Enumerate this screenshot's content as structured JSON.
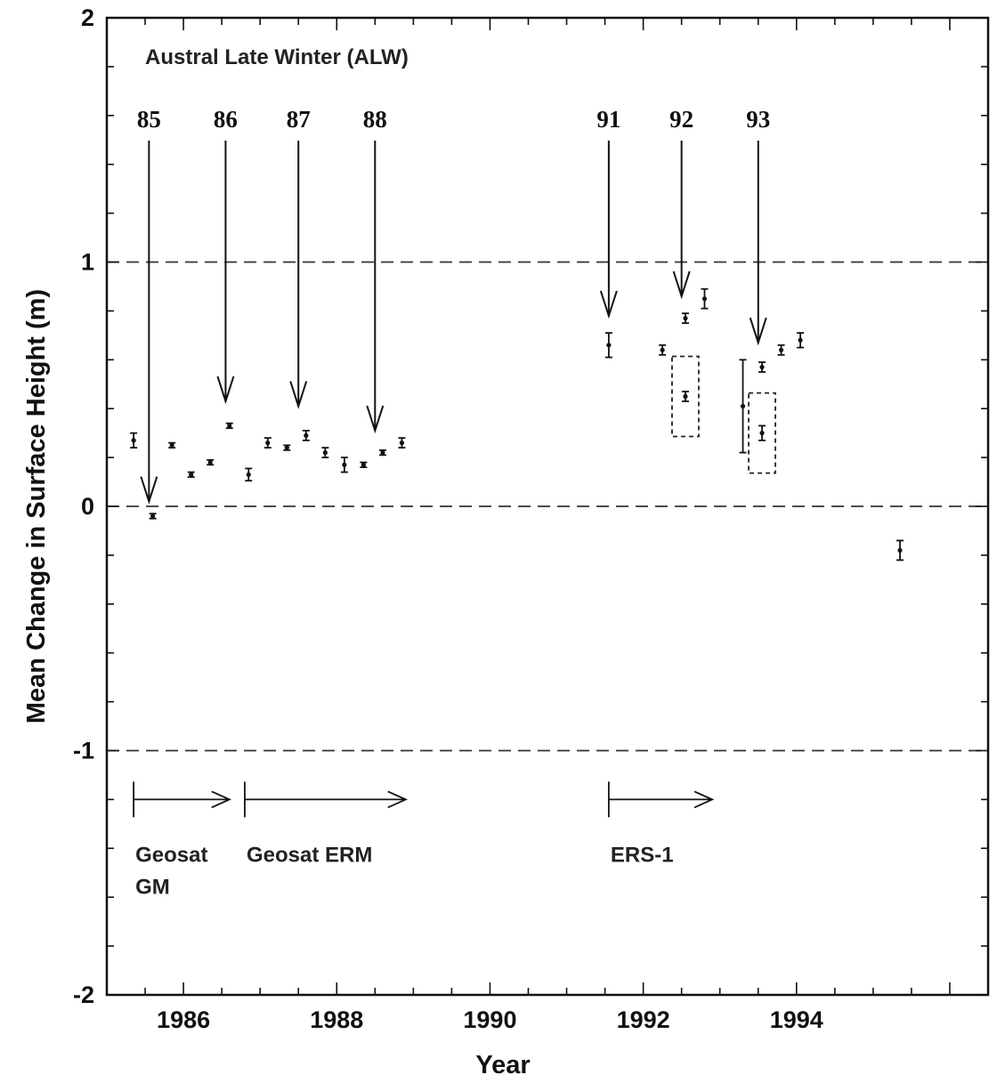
{
  "chart_data": {
    "type": "scatter",
    "title": "",
    "xlabel": "Year",
    "ylabel": "Mean Change in Surface Height (m)",
    "xlim": [
      1985.0,
      1996.5
    ],
    "ylim": [
      -2,
      2
    ],
    "x_ticks": [
      1986,
      1988,
      1990,
      1992,
      1994
    ],
    "y_ticks": [
      2,
      1,
      0,
      -1,
      -2
    ],
    "grid": false,
    "reference_lines": [
      1,
      0,
      -1
    ],
    "annotations": [
      {
        "text": "Austral Late Winter (ALW)",
        "x": 1985.5,
        "y": 1.81
      }
    ],
    "season_markers": [
      {
        "label": "85",
        "x": 1985.55,
        "arrow_to_y": 0.02
      },
      {
        "label": "86",
        "x": 1986.55,
        "arrow_to_y": 0.43
      },
      {
        "label": "87",
        "x": 1987.5,
        "arrow_to_y": 0.41
      },
      {
        "label": "88",
        "x": 1988.5,
        "arrow_to_y": 0.31
      },
      {
        "label": "91",
        "x": 1991.55,
        "arrow_to_y": 0.78
      },
      {
        "label": "92",
        "x": 1992.5,
        "arrow_to_y": 0.86
      },
      {
        "label": "93",
        "x": 1993.5,
        "arrow_to_y": 0.67
      }
    ],
    "missions": [
      {
        "name": "Geosat GM",
        "lines": [
          "Geosat",
          "GM"
        ],
        "x_start": 1985.35,
        "x_end": 1986.6,
        "y": -1.2
      },
      {
        "name": "Geosat ERM",
        "lines": [
          "Geosat ERM"
        ],
        "x_start": 1986.8,
        "x_end": 1988.9,
        "y": -1.2
      },
      {
        "name": "ERS-1",
        "lines": [
          "ERS-1"
        ],
        "x_start": 1991.55,
        "x_end": 1992.9,
        "y": -1.2
      }
    ],
    "series": [
      {
        "x": [
          1985.35,
          1985.6,
          1985.85,
          1986.1,
          1986.35,
          1986.6,
          1986.85,
          1987.1,
          1987.35,
          1987.6,
          1987.85,
          1988.1,
          1988.35,
          1988.6,
          1988.85,
          1991.55,
          1992.25,
          1992.55,
          1992.8,
          1993.3,
          1993.55,
          1993.8,
          1994.05,
          1995.35
        ],
        "y": [
          0.27,
          -0.04,
          0.25,
          0.13,
          0.18,
          0.33,
          0.13,
          0.26,
          0.24,
          0.29,
          0.22,
          0.17,
          0.17,
          0.22,
          0.26,
          0.66,
          0.64,
          0.77,
          0.85,
          0.41,
          0.57,
          0.64,
          0.68,
          -0.18
        ],
        "err": [
          0.03,
          0.01,
          0.01,
          0.01,
          0.01,
          0.01,
          0.025,
          0.02,
          0.01,
          0.02,
          0.02,
          0.03,
          0.01,
          0.01,
          0.02,
          0.05,
          0.02,
          0.02,
          0.04,
          0.19,
          0.02,
          0.02,
          0.03,
          0.04
        ]
      },
      {
        "x": [
          1992.55,
          1993.55
        ],
        "y": [
          0.45,
          0.3
        ],
        "err": [
          0.02,
          0.03
        ],
        "boxed": true
      }
    ]
  }
}
